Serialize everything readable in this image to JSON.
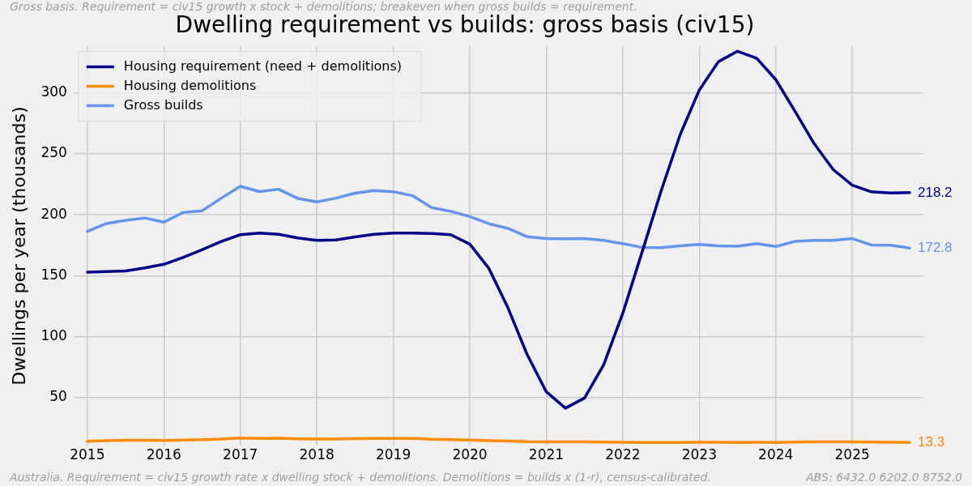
{
  "chart_data": {
    "type": "line",
    "title": "Dwelling requirement vs builds: gross basis (civ15)",
    "ylabel": "Dwellings per year (thousands)",
    "annotations": [
      "Gross basis. Requirement = civ15 growth x stock + demolitions; breakeven when gross builds = requirement.",
      "Australia. Requirement = civ15 growth rate x dwelling stock + demolitions. Demolitions = builds x (1-r), census-calibrated.",
      "ABS: 6432.0 6202.0 8752.0"
    ],
    "x": [
      2015,
      2015.25,
      2015.5,
      2015.75,
      2016,
      2016.25,
      2016.5,
      2016.75,
      2017,
      2017.25,
      2017.5,
      2017.75,
      2018,
      2018.25,
      2018.5,
      2018.75,
      2019,
      2019.25,
      2019.5,
      2019.75,
      2020,
      2020.25,
      2020.5,
      2020.75,
      2021,
      2021.25,
      2021.5,
      2021.75,
      2022,
      2022.25,
      2022.5,
      2022.75,
      2023,
      2023.25,
      2023.5,
      2023.75,
      2024,
      2024.25,
      2024.5,
      2024.75,
      2025,
      2025.25,
      2025.5,
      2025.75
    ],
    "xlim": [
      2014.82,
      2025.93
    ],
    "xticks": [
      2015,
      2016,
      2017,
      2018,
      2019,
      2020,
      2021,
      2022,
      2023,
      2024,
      2025
    ],
    "ylim": [
      11,
      338
    ],
    "yticks": [
      50,
      100,
      150,
      200,
      250,
      300
    ],
    "grid": true,
    "legend": "top left",
    "marker": "none",
    "line_style": "solid",
    "series": [
      {
        "name": "Housing requirement (need + demolitions)",
        "color": "#00008b",
        "values": [
          153,
          153.5,
          154,
          156.5,
          159.4,
          165,
          171.4,
          178.2,
          183.7,
          185,
          184,
          181,
          179,
          179.4,
          181.9,
          184,
          185,
          185,
          184.7,
          183.7,
          176,
          156,
          123.5,
          85.3,
          54.8,
          41.4,
          49.7,
          77,
          119.3,
          169,
          219.4,
          265.8,
          302.4,
          325.7,
          334.2,
          328.5,
          311,
          285.2,
          258.6,
          237.2,
          224.3,
          218.9,
          217.9,
          218.2
        ],
        "value_labels": [
          null,
          null,
          null,
          null,
          null,
          null,
          null,
          null,
          null,
          null,
          null,
          null,
          null,
          null,
          null,
          null,
          null,
          null,
          null,
          null,
          null,
          null,
          null,
          null,
          null,
          null,
          null,
          null,
          null,
          null,
          null,
          null,
          null,
          null,
          null,
          null,
          null,
          null,
          null,
          null,
          null,
          null,
          null,
          "218.2"
        ]
      },
      {
        "name": "Housing demolitions",
        "color": "#ff8c00",
        "values": [
          14.3,
          14.8,
          15.0,
          15.1,
          14.9,
          15.3,
          15.5,
          16.1,
          16.8,
          16.6,
          16.7,
          16.2,
          16.0,
          16.1,
          16.4,
          16.6,
          16.6,
          16.5,
          15.9,
          15.5,
          15.2,
          14.8,
          14.4,
          13.9,
          13.8,
          13.8,
          13.7,
          13.6,
          13.4,
          13.2,
          13.2,
          13.3,
          13.4,
          13.4,
          13.3,
          13.4,
          13.3,
          13.6,
          13.7,
          13.7,
          13.8,
          13.5,
          13.4,
          13.3
        ],
        "value_labels": [
          null,
          null,
          null,
          null,
          null,
          null,
          null,
          null,
          null,
          null,
          null,
          null,
          null,
          null,
          null,
          null,
          null,
          null,
          null,
          null,
          null,
          null,
          null,
          null,
          null,
          null,
          null,
          null,
          null,
          null,
          null,
          null,
          null,
          null,
          null,
          null,
          null,
          null,
          null,
          null,
          null,
          null,
          null,
          "13.3"
        ]
      },
      {
        "name": "Gross builds",
        "color": "#6495ed",
        "values": [
          186.5,
          192.9,
          195.5,
          197.4,
          194,
          201.9,
          203.3,
          213.7,
          223.4,
          219.1,
          221,
          213.5,
          210.6,
          213.7,
          217.8,
          219.9,
          219,
          215.7,
          206,
          202.9,
          198.6,
          192.7,
          188.9,
          182,
          180.5,
          180.3,
          180.6,
          179,
          176.4,
          173.3,
          173.1,
          174.5,
          175.8,
          174.5,
          174.3,
          176.4,
          174,
          178.2,
          179,
          179,
          180.5,
          175.3,
          175,
          172.8
        ],
        "value_labels": [
          null,
          null,
          null,
          null,
          null,
          null,
          null,
          null,
          null,
          null,
          null,
          null,
          null,
          null,
          null,
          null,
          null,
          null,
          null,
          null,
          null,
          null,
          null,
          null,
          null,
          null,
          null,
          null,
          null,
          null,
          null,
          null,
          null,
          null,
          null,
          null,
          null,
          null,
          null,
          null,
          null,
          null,
          null,
          "172.8"
        ]
      }
    ]
  }
}
